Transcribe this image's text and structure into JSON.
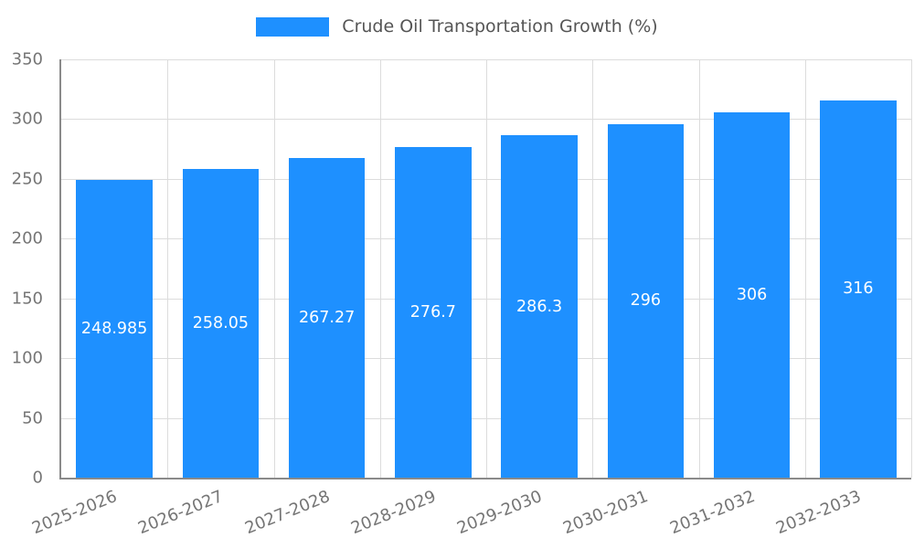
{
  "chart_data": {
    "type": "bar",
    "title": "Crude Oil Transportation Growth (%)",
    "categories": [
      "2025-2026",
      "2026-2027",
      "2027-2028",
      "2028-2029",
      "2029-2030",
      "2030-2031",
      "2031-2032",
      "2032-2033"
    ],
    "values": [
      248.985,
      258.05,
      267.27,
      276.7,
      286.3,
      296,
      306,
      316
    ],
    "value_labels": [
      "248.985",
      "258.05",
      "267.27",
      "276.7",
      "286.3",
      "296",
      "306",
      "316"
    ],
    "xlabel": "",
    "ylabel": "",
    "ylim": [
      0,
      350
    ],
    "yticks": [
      0,
      50,
      100,
      150,
      200,
      250,
      300,
      350
    ],
    "grid": true,
    "legend_position": "top-center",
    "bar_color": "#1E90FF",
    "value_label_color": "#ffffff",
    "tick_color": "#757575",
    "title_color": "#555555"
  }
}
